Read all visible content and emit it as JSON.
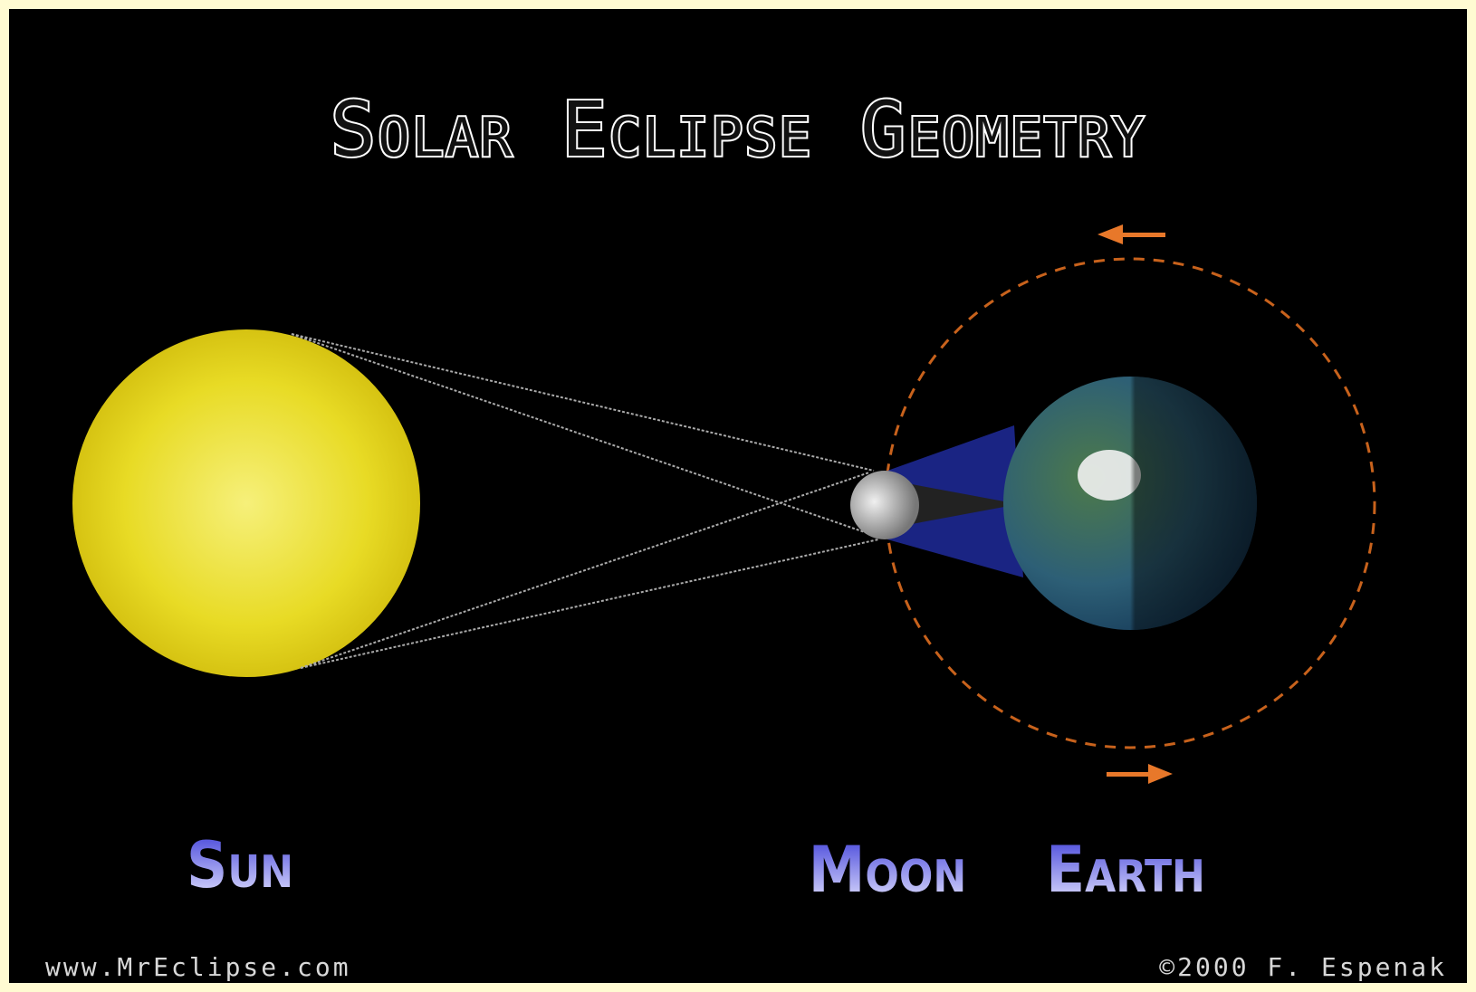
{
  "title": "Solar Eclipse Geometry",
  "labels": {
    "sun": "Sun",
    "moon": "Moon",
    "earth": "Earth"
  },
  "footer": {
    "website": "www.MrEclipse.com",
    "copyright": "©2000 F. Espenak"
  }
}
